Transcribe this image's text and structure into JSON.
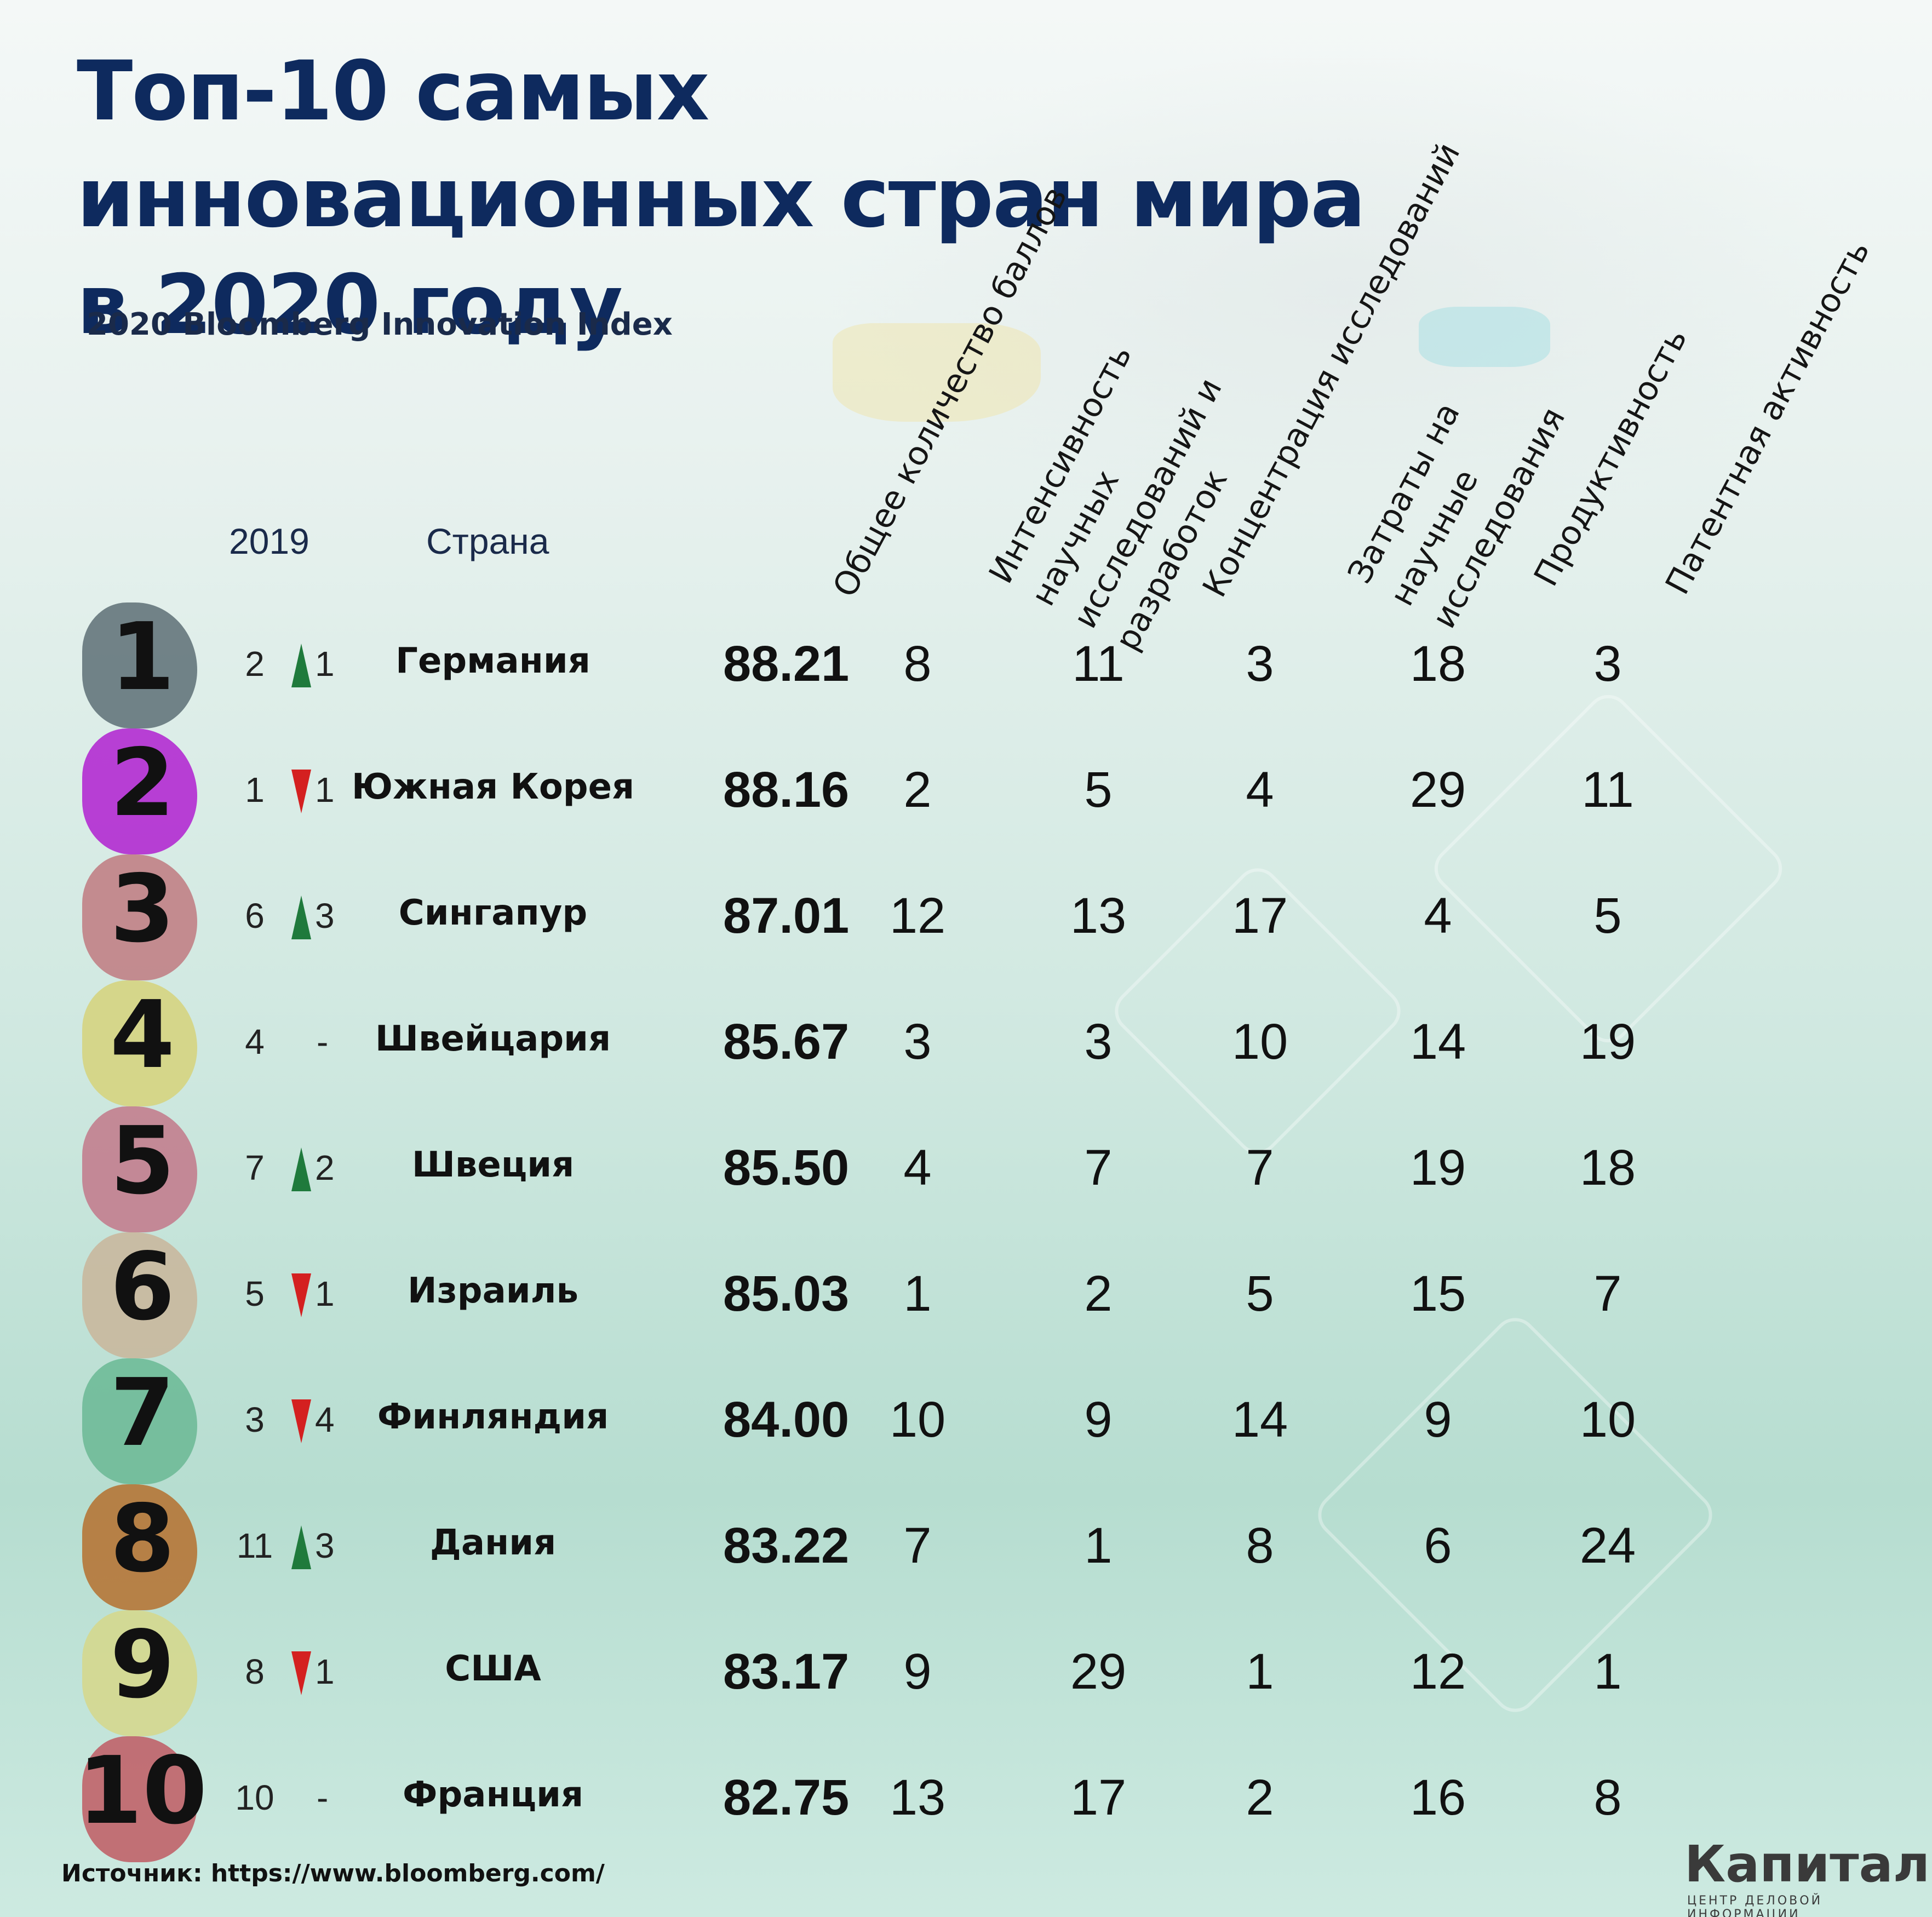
{
  "title": "Топ-10 самых инновационных стран мира в 2020 году",
  "subtitle": "2020 Bloomberg Innovation Index",
  "headers": {
    "prev_year": "2019",
    "country": "Страна",
    "total": "Общее количество баллов",
    "rnd_intensity": "Интенсивность научных исследований и разработок",
    "research_concentration": "Концентрация исследований",
    "research_spending": "Затраты на научные исследования",
    "productivity": "Продуктивность",
    "patent_activity": "Патентная активность"
  },
  "colors": {
    "title": "#0e2a5e",
    "up": "#1f7a3c",
    "down": "#d42020",
    "blobs": [
      "#5d6e76",
      "#b020d0",
      "#c07a80",
      "#d6d27a",
      "#c2788a",
      "#c9b59a",
      "#6ab894",
      "#b5702e",
      "#d6d78a",
      "#c05a63"
    ]
  },
  "chart_data": {
    "type": "table",
    "title": "Топ-10 самых инновационных стран мира в 2020 году",
    "subtitle": "2020 Bloomberg Innovation Index",
    "columns": [
      "2019",
      "Страна",
      "Общее количество баллов",
      "Интенсивность научных исследований и разработок",
      "Концентрация исследований",
      "Затраты на научные исследования",
      "Продуктивность",
      "Патентная активность"
    ],
    "rows": [
      {
        "rank": "1",
        "prev": "2",
        "dir": "up",
        "change": "1",
        "country": "Германия",
        "total": "88.21",
        "m1": "8",
        "m2": "11",
        "m3": "3",
        "m4": "18",
        "m5": "3"
      },
      {
        "rank": "2",
        "prev": "1",
        "dir": "down",
        "change": "1",
        "country": "Южная Корея",
        "total": "88.16",
        "m1": "2",
        "m2": "5",
        "m3": "4",
        "m4": "29",
        "m5": "11"
      },
      {
        "rank": "3",
        "prev": "6",
        "dir": "up",
        "change": "3",
        "country": "Сингапур",
        "total": "87.01",
        "m1": "12",
        "m2": "13",
        "m3": "17",
        "m4": "4",
        "m5": "5"
      },
      {
        "rank": "4",
        "prev": "4",
        "dir": "none",
        "change": "-",
        "country": "Швейцария",
        "total": "85.67",
        "m1": "3",
        "m2": "3",
        "m3": "10",
        "m4": "14",
        "m5": "19"
      },
      {
        "rank": "5",
        "prev": "7",
        "dir": "up",
        "change": "2",
        "country": "Швеция",
        "total": "85.50",
        "m1": "4",
        "m2": "7",
        "m3": "7",
        "m4": "19",
        "m5": "18"
      },
      {
        "rank": "6",
        "prev": "5",
        "dir": "down",
        "change": "1",
        "country": "Израиль",
        "total": "85.03",
        "m1": "1",
        "m2": "2",
        "m3": "5",
        "m4": "15",
        "m5": "7"
      },
      {
        "rank": "7",
        "prev": "3",
        "dir": "down",
        "change": "4",
        "country": "Финляндия",
        "total": "84.00",
        "m1": "10",
        "m2": "9",
        "m3": "14",
        "m4": "9",
        "m5": "10"
      },
      {
        "rank": "8",
        "prev": "11",
        "dir": "up",
        "change": "3",
        "country": "Дания",
        "total": "83.22",
        "m1": "7",
        "m2": "1",
        "m3": "8",
        "m4": "6",
        "m5": "24"
      },
      {
        "rank": "9",
        "prev": "8",
        "dir": "down",
        "change": "1",
        "country": "США",
        "total": "83.17",
        "m1": "9",
        "m2": "29",
        "m3": "1",
        "m4": "12",
        "m5": "1"
      },
      {
        "rank": "10",
        "prev": "10",
        "dir": "none",
        "change": "-",
        "country": "Франция",
        "total": "82.75",
        "m1": "13",
        "m2": "17",
        "m3": "2",
        "m4": "16",
        "m5": "8"
      }
    ]
  },
  "source": "Источник: https://www.bloomberg.com/",
  "logo": {
    "name": "Капитал",
    "tagline": "ЦЕНТР ДЕЛОВОЙ ИНФОРМАЦИИ"
  }
}
